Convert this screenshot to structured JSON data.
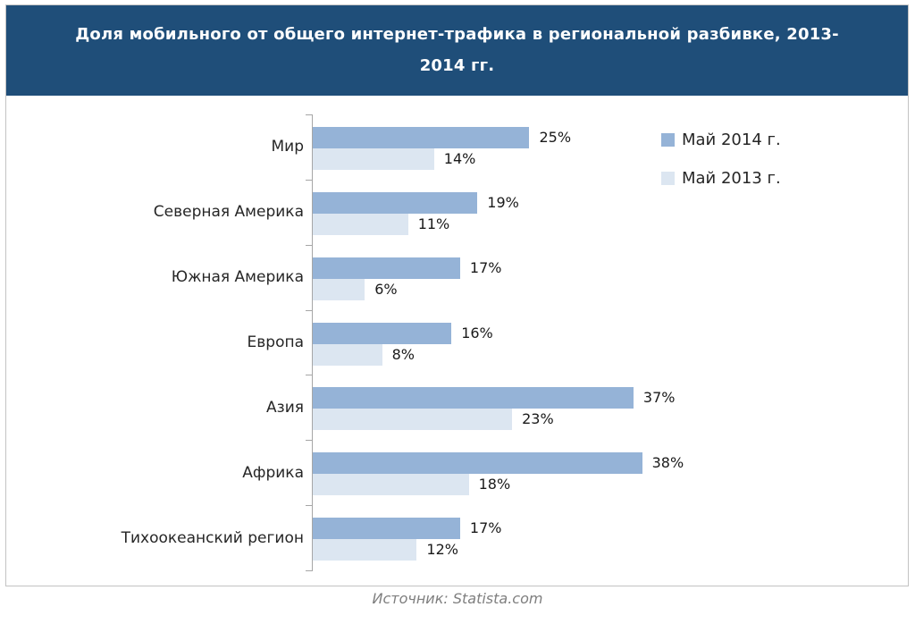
{
  "header": {
    "line1": "Доля мобильного от общего интернет-трафика в региональной разбивке, 2013-",
    "line2": "2014 гг."
  },
  "chart_data": {
    "type": "bar",
    "orientation": "horizontal",
    "title": "Доля мобильного от общего интернет-трафика в региональной разбивке, 2013-2014 гг.",
    "categories": [
      "Мир",
      "Северная Америка",
      "Южная Америка",
      "Европа",
      "Азия",
      "Африка",
      "Тихоокеанский регион"
    ],
    "series": [
      {
        "name": "Май 2014 г.",
        "color": "#95B3D7",
        "values": [
          25,
          19,
          17,
          16,
          37,
          38,
          17
        ]
      },
      {
        "name": "Май 2013 г.",
        "color": "#DCE6F1",
        "values": [
          14,
          11,
          6,
          8,
          23,
          18,
          12
        ]
      }
    ],
    "value_suffix": "%",
    "data_labels": true,
    "xlim": [
      0,
      40
    ],
    "grid": false,
    "legend_position": "top-right",
    "source": "Источник: Statista.com"
  },
  "colors": {
    "header_bg": "#1F4E79",
    "title_text": "#FFFFFF",
    "series_2014": "#95B3D7",
    "series_2013": "#DCE6F1",
    "axis": "#A6A6A6",
    "source_text": "#7F7F7F"
  }
}
